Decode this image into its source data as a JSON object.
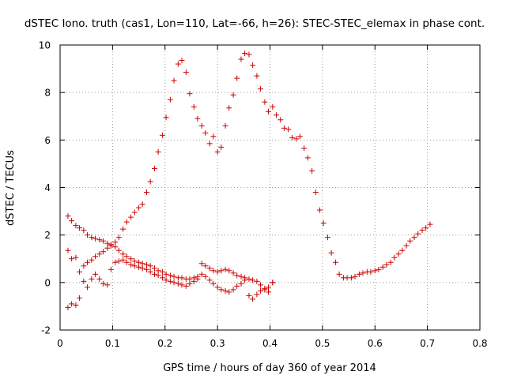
{
  "chart_data": {
    "type": "scatter",
    "title": "dSTEC Iono. truth (cas1, Lon=110, Lat=-66, h=26): STEC-STEC_elemax in phase cont.",
    "xlabel": "GPS time / hours of day 360 of year 2014",
    "ylabel": "dSTEC  / TECUs",
    "xlim": [
      0,
      0.8
    ],
    "ylim": [
      -2,
      10
    ],
    "xticks": [
      0,
      0.1,
      0.2,
      0.3,
      0.4,
      0.5,
      0.6,
      0.7,
      0.8
    ],
    "xtick_labels": [
      "0",
      "0.1",
      "0.2",
      "0.3",
      "0.4",
      "0.5",
      "0.6",
      "0.7",
      "0.8"
    ],
    "yticks": [
      -2,
      0,
      2,
      4,
      6,
      8,
      10
    ],
    "ytick_labels": [
      "-2",
      "0",
      "2",
      "4",
      "6",
      "8",
      "10"
    ],
    "grid": true,
    "marker": "+",
    "marker_color": "#cc0000",
    "series": [
      {
        "points": [
          [
            0.015,
            -1.05
          ],
          [
            0.022,
            -0.9
          ],
          [
            0.03,
            -0.95
          ],
          [
            0.037,
            -0.65
          ],
          [
            0.045,
            0.05
          ],
          [
            0.052,
            -0.2
          ],
          [
            0.06,
            0.15
          ],
          [
            0.067,
            0.35
          ],
          [
            0.075,
            0.15
          ],
          [
            0.082,
            -0.05
          ],
          [
            0.09,
            -0.1
          ],
          [
            0.097,
            0.55
          ],
          [
            0.105,
            0.85
          ],
          [
            0.112,
            0.9
          ],
          [
            0.12,
            0.95
          ],
          [
            0.127,
            0.85
          ],
          [
            0.135,
            0.75
          ],
          [
            0.142,
            0.7
          ],
          [
            0.15,
            0.65
          ],
          [
            0.157,
            0.6
          ],
          [
            0.165,
            0.55
          ],
          [
            0.172,
            0.45
          ],
          [
            0.18,
            0.35
          ],
          [
            0.187,
            0.3
          ],
          [
            0.195,
            0.2
          ],
          [
            0.202,
            0.1
          ],
          [
            0.21,
            0.05
          ],
          [
            0.217,
            0.0
          ],
          [
            0.225,
            -0.05
          ],
          [
            0.232,
            -0.1
          ],
          [
            0.24,
            -0.15
          ],
          [
            0.247,
            -0.05
          ],
          [
            0.255,
            0.05
          ],
          [
            0.262,
            0.15
          ],
          [
            0.27,
            0.35
          ],
          [
            0.277,
            0.25
          ],
          [
            0.285,
            0.1
          ],
          [
            0.292,
            -0.05
          ],
          [
            0.3,
            -0.2
          ],
          [
            0.307,
            -0.3
          ],
          [
            0.315,
            -0.35
          ],
          [
            0.322,
            -0.4
          ],
          [
            0.33,
            -0.3
          ],
          [
            0.337,
            -0.15
          ],
          [
            0.345,
            -0.05
          ],
          [
            0.352,
            0.1
          ],
          [
            0.36,
            -0.55
          ],
          [
            0.367,
            -0.7
          ],
          [
            0.375,
            -0.5
          ],
          [
            0.382,
            -0.35
          ],
          [
            0.39,
            -0.25
          ],
          [
            0.397,
            -0.2
          ],
          [
            0.405,
            0.0
          ]
        ]
      },
      {
        "points": [
          [
            0.015,
            2.8
          ],
          [
            0.022,
            2.6
          ],
          [
            0.03,
            2.4
          ],
          [
            0.037,
            2.3
          ],
          [
            0.045,
            2.2
          ],
          [
            0.052,
            2.0
          ],
          [
            0.06,
            1.9
          ],
          [
            0.067,
            1.85
          ],
          [
            0.075,
            1.8
          ],
          [
            0.082,
            1.75
          ],
          [
            0.09,
            1.65
          ],
          [
            0.097,
            1.6
          ],
          [
            0.105,
            1.5
          ],
          [
            0.112,
            1.35
          ],
          [
            0.12,
            1.2
          ],
          [
            0.127,
            1.1
          ],
          [
            0.135,
            1.0
          ],
          [
            0.142,
            0.9
          ],
          [
            0.15,
            0.85
          ],
          [
            0.157,
            0.8
          ],
          [
            0.165,
            0.75
          ],
          [
            0.172,
            0.7
          ],
          [
            0.18,
            0.6
          ],
          [
            0.187,
            0.5
          ],
          [
            0.195,
            0.45
          ],
          [
            0.202,
            0.35
          ],
          [
            0.21,
            0.3
          ],
          [
            0.217,
            0.25
          ],
          [
            0.225,
            0.2
          ],
          [
            0.232,
            0.2
          ],
          [
            0.24,
            0.15
          ],
          [
            0.247,
            0.15
          ],
          [
            0.255,
            0.2
          ],
          [
            0.262,
            0.25
          ],
          [
            0.27,
            0.8
          ],
          [
            0.277,
            0.7
          ],
          [
            0.285,
            0.6
          ],
          [
            0.292,
            0.5
          ],
          [
            0.3,
            0.45
          ],
          [
            0.307,
            0.5
          ],
          [
            0.315,
            0.55
          ],
          [
            0.322,
            0.5
          ],
          [
            0.33,
            0.4
          ],
          [
            0.337,
            0.3
          ],
          [
            0.345,
            0.25
          ],
          [
            0.352,
            0.2
          ],
          [
            0.36,
            0.15
          ],
          [
            0.367,
            0.1
          ],
          [
            0.375,
            0.05
          ],
          [
            0.382,
            -0.1
          ],
          [
            0.39,
            -0.3
          ],
          [
            0.397,
            -0.4
          ],
          [
            0.405,
            0.0
          ]
        ]
      },
      {
        "points": [
          [
            0.015,
            1.35
          ],
          [
            0.022,
            1.0
          ],
          [
            0.03,
            1.05
          ],
          [
            0.037,
            0.45
          ],
          [
            0.045,
            0.7
          ],
          [
            0.052,
            0.85
          ],
          [
            0.06,
            0.95
          ],
          [
            0.067,
            1.1
          ],
          [
            0.075,
            1.2
          ],
          [
            0.082,
            1.3
          ],
          [
            0.09,
            1.45
          ],
          [
            0.097,
            1.55
          ],
          [
            0.105,
            1.7
          ],
          [
            0.112,
            1.9
          ],
          [
            0.12,
            2.25
          ],
          [
            0.127,
            2.55
          ],
          [
            0.135,
            2.75
          ],
          [
            0.142,
            2.95
          ],
          [
            0.15,
            3.15
          ],
          [
            0.157,
            3.3
          ],
          [
            0.165,
            3.8
          ],
          [
            0.172,
            4.25
          ],
          [
            0.18,
            4.8
          ],
          [
            0.187,
            5.5
          ],
          [
            0.195,
            6.2
          ],
          [
            0.202,
            6.95
          ],
          [
            0.21,
            7.7
          ],
          [
            0.217,
            8.5
          ],
          [
            0.225,
            9.2
          ],
          [
            0.232,
            9.35
          ],
          [
            0.24,
            8.85
          ],
          [
            0.247,
            7.95
          ],
          [
            0.255,
            7.4
          ],
          [
            0.262,
            6.9
          ],
          [
            0.27,
            6.6
          ],
          [
            0.277,
            6.3
          ],
          [
            0.285,
            5.85
          ],
          [
            0.292,
            6.15
          ],
          [
            0.3,
            5.5
          ],
          [
            0.307,
            5.7
          ],
          [
            0.315,
            6.6
          ],
          [
            0.322,
            7.35
          ],
          [
            0.33,
            7.9
          ],
          [
            0.337,
            8.6
          ],
          [
            0.345,
            9.4
          ],
          [
            0.352,
            9.65
          ],
          [
            0.36,
            9.6
          ],
          [
            0.367,
            9.15
          ],
          [
            0.375,
            8.7
          ],
          [
            0.382,
            8.15
          ],
          [
            0.39,
            7.6
          ],
          [
            0.397,
            7.2
          ],
          [
            0.405,
            7.4
          ],
          [
            0.412,
            7.05
          ],
          [
            0.42,
            6.85
          ],
          [
            0.427,
            6.5
          ],
          [
            0.435,
            6.45
          ],
          [
            0.442,
            6.1
          ],
          [
            0.45,
            6.05
          ],
          [
            0.457,
            6.15
          ],
          [
            0.465,
            5.65
          ],
          [
            0.472,
            5.25
          ],
          [
            0.48,
            4.7
          ],
          [
            0.487,
            3.8
          ],
          [
            0.495,
            3.05
          ],
          [
            0.502,
            2.5
          ],
          [
            0.51,
            1.9
          ],
          [
            0.517,
            1.25
          ],
          [
            0.525,
            0.85
          ],
          [
            0.532,
            0.35
          ],
          [
            0.54,
            0.2
          ],
          [
            0.547,
            0.2
          ],
          [
            0.555,
            0.2
          ],
          [
            0.562,
            0.25
          ],
          [
            0.57,
            0.35
          ],
          [
            0.577,
            0.4
          ],
          [
            0.585,
            0.45
          ],
          [
            0.592,
            0.45
          ],
          [
            0.6,
            0.5
          ],
          [
            0.607,
            0.55
          ],
          [
            0.615,
            0.65
          ],
          [
            0.622,
            0.75
          ],
          [
            0.63,
            0.85
          ],
          [
            0.637,
            1.05
          ],
          [
            0.645,
            1.2
          ],
          [
            0.652,
            1.35
          ],
          [
            0.66,
            1.55
          ],
          [
            0.667,
            1.75
          ],
          [
            0.675,
            1.9
          ],
          [
            0.682,
            2.05
          ],
          [
            0.69,
            2.2
          ],
          [
            0.697,
            2.3
          ],
          [
            0.705,
            2.45
          ]
        ]
      }
    ]
  }
}
